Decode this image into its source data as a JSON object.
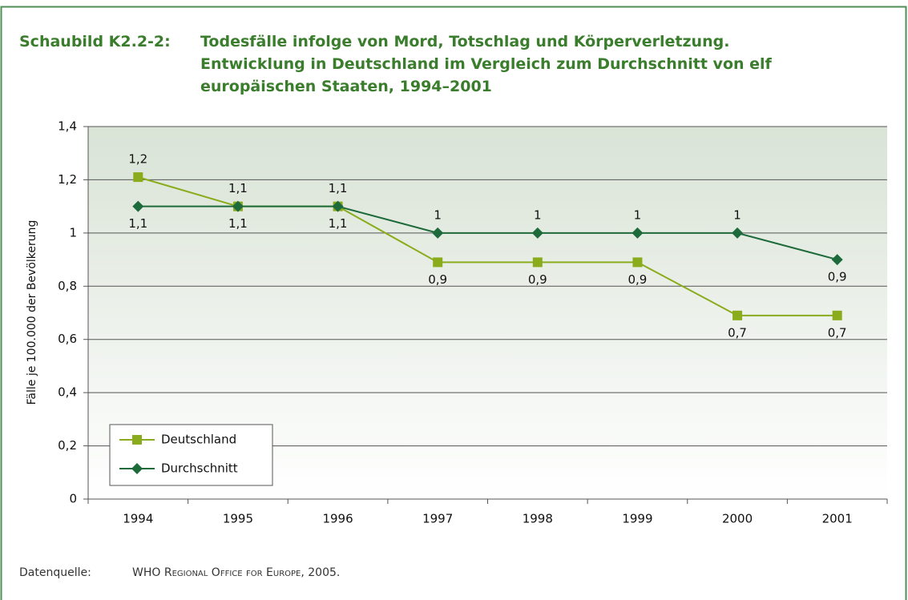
{
  "chart_data": {
    "type": "line",
    "figure_label": "Schaubild K2.2-2:",
    "title_lines": [
      "Todesfälle infolge von Mord, Totschlag und Körperverletzung.",
      "Entwicklung in Deutschland im Vergleich zum Durchschnitt von elf",
      "europäischen Staaten, 1994–2001"
    ],
    "y_label": "Fälle je 100.000 der Bevölkerung",
    "categories": [
      "1994",
      "1995",
      "1996",
      "1997",
      "1998",
      "1999",
      "2000",
      "2001"
    ],
    "series": [
      {
        "name": "Deutschland",
        "color": "#8aac1c",
        "marker": "square",
        "values": [
          1.21,
          1.1,
          1.1,
          0.89,
          0.89,
          0.89,
          0.69,
          0.69
        ],
        "value_labels": [
          "1,2",
          "1,1",
          "1,1",
          "0,9",
          "0,9",
          "0,9",
          "0,7",
          "0,7"
        ]
      },
      {
        "name": "Durchschnitt",
        "color": "#1d6a3a",
        "marker": "diamond",
        "values": [
          1.1,
          1.1,
          1.1,
          1,
          1,
          1,
          1,
          0.9
        ],
        "value_labels": [
          "1,1",
          "1,1",
          "1,1",
          "1",
          "1",
          "1",
          "1",
          "0,9"
        ]
      }
    ],
    "ylim": [
      0,
      1.4
    ],
    "yticks": [
      0,
      {
        "value": 0.2,
        "label": "0,2"
      },
      {
        "value": 0.4,
        "label": "0,4"
      },
      {
        "value": 0.6,
        "label": "0,6"
      },
      {
        "value": 0.8,
        "label": "0,8"
      },
      1,
      {
        "value": 1.2,
        "label": "1,2"
      },
      {
        "value": 1.4,
        "label": "1,4"
      }
    ],
    "grid": true,
    "legend": "lower left",
    "source_label": "Datenquelle:",
    "source": "WHO Regional Office for Europe, 2005."
  }
}
